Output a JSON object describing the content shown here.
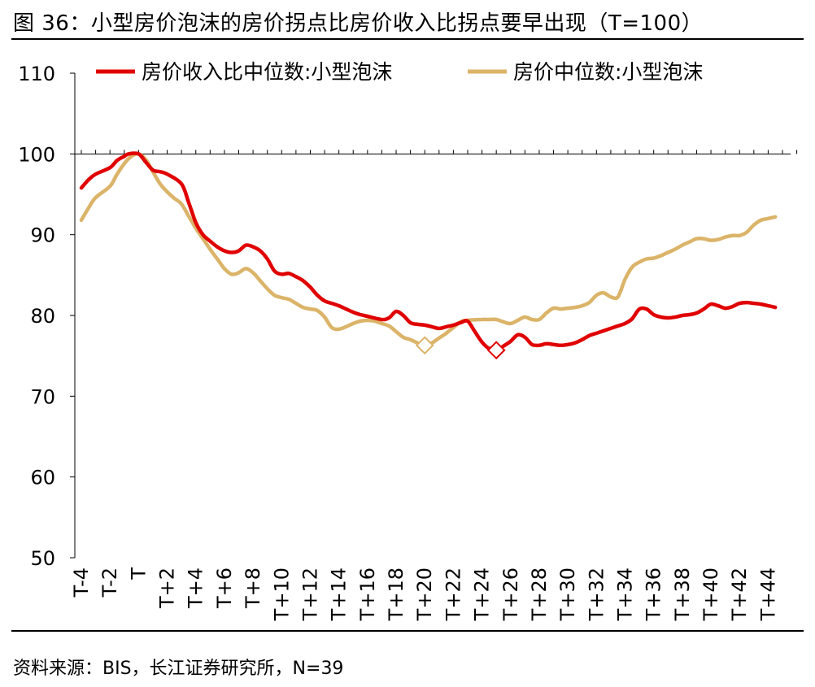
{
  "title": "图 36：小型房价泡沫的房价拐点比房价收入比拐点要早出现（T=100）",
  "source": "资料来源：BIS，长江证券研究所，N=39",
  "colors": {
    "red": "#e00000",
    "gold": "#dbb469"
  },
  "chart_data": {
    "type": "line",
    "ylim": [
      50,
      110
    ],
    "yticks": [
      50,
      60,
      70,
      80,
      90,
      100,
      110
    ],
    "xlim": [
      -4,
      46
    ],
    "xtick_labels": [
      "T-4",
      "T-2",
      "T",
      "T+2",
      "T+4",
      "T+6",
      "T+8",
      "T+10",
      "T+12",
      "T+14",
      "T+16",
      "T+18",
      "T+20",
      "T+22",
      "T+24",
      "T+26",
      "T+28",
      "T+30",
      "T+32",
      "T+34",
      "T+36",
      "T+38",
      "T+40",
      "T+42",
      "T+44"
    ],
    "reference_line": 100,
    "legend_position": "top",
    "series": [
      {
        "name": "房价收入比中位数:小型泡沫",
        "color": "#e00000",
        "turning_point": {
          "x": 25,
          "y": 75.7
        },
        "points": [
          [
            -4,
            95.8
          ],
          [
            -3.5,
            96.8
          ],
          [
            -3,
            97.5
          ],
          [
            -2,
            98.3
          ],
          [
            -1.5,
            99.2
          ],
          [
            -1,
            99.7
          ],
          [
            -0.7,
            100
          ],
          [
            0,
            100
          ],
          [
            0.5,
            99
          ],
          [
            1,
            98
          ],
          [
            1.5,
            97.8
          ],
          [
            2,
            97.5
          ],
          [
            3,
            96.3
          ],
          [
            3.5,
            94
          ],
          [
            4,
            91.5
          ],
          [
            4.5,
            90
          ],
          [
            5,
            89.2
          ],
          [
            5.5,
            88.5
          ],
          [
            6,
            88
          ],
          [
            6.5,
            87.8
          ],
          [
            7,
            88
          ],
          [
            7.5,
            88.7
          ],
          [
            8,
            88.5
          ],
          [
            8.5,
            88
          ],
          [
            9,
            87
          ],
          [
            9.5,
            85.5
          ],
          [
            10,
            85.1
          ],
          [
            10.5,
            85.2
          ],
          [
            11,
            84.8
          ],
          [
            11.5,
            84.3
          ],
          [
            12,
            83.5
          ],
          [
            12.5,
            82.5
          ],
          [
            13,
            81.8
          ],
          [
            13.5,
            81.5
          ],
          [
            14,
            81.2
          ],
          [
            14.5,
            80.8
          ],
          [
            15,
            80.4
          ],
          [
            15.5,
            80.1
          ],
          [
            16,
            79.9
          ],
          [
            17,
            79.5
          ],
          [
            17.5,
            79.7
          ],
          [
            18,
            80.5
          ],
          [
            18.5,
            80
          ],
          [
            19,
            79.1
          ],
          [
            19.5,
            78.9
          ],
          [
            20,
            78.8
          ],
          [
            20.5,
            78.6
          ],
          [
            21,
            78.4
          ],
          [
            21.5,
            78.6
          ],
          [
            22,
            78.8
          ],
          [
            22.5,
            79.1
          ],
          [
            23,
            79.3
          ],
          [
            23.5,
            78
          ],
          [
            24,
            76.7
          ],
          [
            24.5,
            75.9
          ],
          [
            25,
            75.7
          ],
          [
            25.5,
            76.2
          ],
          [
            26,
            76.8
          ],
          [
            26.5,
            77.6
          ],
          [
            27,
            77.3
          ],
          [
            27.5,
            76.4
          ],
          [
            28,
            76.3
          ],
          [
            28.5,
            76.5
          ],
          [
            29,
            76.4
          ],
          [
            29.5,
            76.3
          ],
          [
            30,
            76.4
          ],
          [
            30.5,
            76.6
          ],
          [
            31,
            77
          ],
          [
            31.5,
            77.5
          ],
          [
            32,
            77.8
          ],
          [
            32.5,
            78.1
          ],
          [
            33,
            78.4
          ],
          [
            33.5,
            78.7
          ],
          [
            34,
            79
          ],
          [
            34.5,
            79.6
          ],
          [
            35,
            80.8
          ],
          [
            35.5,
            80.8
          ],
          [
            36,
            80.1
          ],
          [
            36.5,
            79.8
          ],
          [
            37,
            79.7
          ],
          [
            37.5,
            79.8
          ],
          [
            38,
            80
          ],
          [
            38.5,
            80.1
          ],
          [
            39,
            80.3
          ],
          [
            39.5,
            80.8
          ],
          [
            40,
            81.4
          ],
          [
            40.5,
            81.2
          ],
          [
            41,
            80.9
          ],
          [
            41.5,
            81.1
          ],
          [
            42,
            81.5
          ],
          [
            42.5,
            81.6
          ],
          [
            43,
            81.5
          ],
          [
            43.5,
            81.4
          ],
          [
            44,
            81.2
          ],
          [
            44.5,
            81
          ]
        ]
      },
      {
        "name": "房价中位数:小型泡沫",
        "color": "#dbb469",
        "turning_point": {
          "x": 20,
          "y": 76.3
        },
        "points": [
          [
            -4,
            91.8
          ],
          [
            -3.5,
            93.3
          ],
          [
            -3,
            94.6
          ],
          [
            -2,
            96
          ],
          [
            -1.5,
            97.5
          ],
          [
            -1,
            98.8
          ],
          [
            -0.5,
            99.7
          ],
          [
            0,
            100
          ],
          [
            0.5,
            99.3
          ],
          [
            1,
            97.8
          ],
          [
            1.5,
            96.3
          ],
          [
            2,
            95.3
          ],
          [
            2.5,
            94.5
          ],
          [
            3,
            93.8
          ],
          [
            3.5,
            92.3
          ],
          [
            4,
            90.8
          ],
          [
            4.5,
            89.5
          ],
          [
            5,
            88.2
          ],
          [
            5.5,
            87
          ],
          [
            6,
            85.8
          ],
          [
            6.5,
            85.1
          ],
          [
            7,
            85.3
          ],
          [
            7.5,
            85.8
          ],
          [
            8,
            85.3
          ],
          [
            8.5,
            84.3
          ],
          [
            9,
            83.3
          ],
          [
            9.5,
            82.5
          ],
          [
            10,
            82.2
          ],
          [
            10.5,
            82
          ],
          [
            11,
            81.5
          ],
          [
            11.5,
            81
          ],
          [
            12,
            80.8
          ],
          [
            12.5,
            80.6
          ],
          [
            13,
            79.8
          ],
          [
            13.5,
            78.5
          ],
          [
            14,
            78.3
          ],
          [
            14.5,
            78.6
          ],
          [
            15,
            79
          ],
          [
            15.5,
            79.3
          ],
          [
            16,
            79.4
          ],
          [
            16.5,
            79.3
          ],
          [
            17,
            79
          ],
          [
            17.5,
            78.7
          ],
          [
            18,
            78
          ],
          [
            18.5,
            77.3
          ],
          [
            19,
            77
          ],
          [
            19.5,
            76.6
          ],
          [
            20,
            76.3
          ],
          [
            20.5,
            76.6
          ],
          [
            21,
            77.2
          ],
          [
            21.5,
            77.8
          ],
          [
            22,
            78.5
          ],
          [
            22.5,
            79.2
          ],
          [
            23,
            79.4
          ],
          [
            24,
            79.5
          ],
          [
            24.5,
            79.5
          ],
          [
            25,
            79.5
          ],
          [
            25.5,
            79.2
          ],
          [
            26,
            79
          ],
          [
            26.5,
            79.4
          ],
          [
            27,
            79.8
          ],
          [
            27.5,
            79.5
          ],
          [
            28,
            79.5
          ],
          [
            28.5,
            80.3
          ],
          [
            29,
            80.9
          ],
          [
            29.5,
            80.8
          ],
          [
            30,
            80.9
          ],
          [
            30.5,
            81
          ],
          [
            31,
            81.2
          ],
          [
            31.5,
            81.6
          ],
          [
            32,
            82.5
          ],
          [
            32.5,
            82.8
          ],
          [
            33,
            82.3
          ],
          [
            33.5,
            82.3
          ],
          [
            34,
            84.5
          ],
          [
            34.5,
            86
          ],
          [
            35,
            86.6
          ],
          [
            35.5,
            87
          ],
          [
            36,
            87.1
          ],
          [
            36.5,
            87.4
          ],
          [
            37,
            87.8
          ],
          [
            37.5,
            88.2
          ],
          [
            38,
            88.7
          ],
          [
            38.5,
            89.1
          ],
          [
            39,
            89.5
          ],
          [
            39.5,
            89.5
          ],
          [
            40,
            89.3
          ],
          [
            40.5,
            89.4
          ],
          [
            41,
            89.7
          ],
          [
            41.5,
            89.9
          ],
          [
            42,
            89.9
          ],
          [
            42.5,
            90.3
          ],
          [
            43,
            91.2
          ],
          [
            43.5,
            91.8
          ],
          [
            44,
            92
          ],
          [
            44.5,
            92.2
          ]
        ]
      }
    ]
  }
}
